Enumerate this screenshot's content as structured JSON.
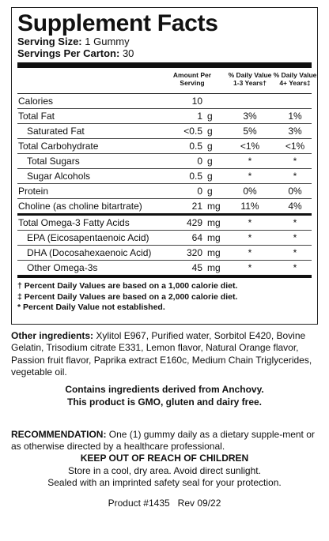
{
  "panel": {
    "title": "Supplement Facts",
    "serving_size_label": "Serving Size:",
    "serving_size_value": "1 Gummy",
    "servings_label": "Servings Per Carton:",
    "servings_value": "30",
    "col_amount": [
      "Amount Per",
      "Serving"
    ],
    "col_dv1": [
      "% Daily Value",
      "1-3 Years†"
    ],
    "col_dv2": [
      "% Daily Value",
      "4+ Years‡"
    ],
    "rows": [
      {
        "label": "Calories",
        "amount": "10",
        "unit": "",
        "dv1": "",
        "dv2": ""
      },
      {
        "label": "Total Fat",
        "amount": "1",
        "unit": "g",
        "dv1": "3%",
        "dv2": "1%"
      },
      {
        "label": "Saturated Fat",
        "amount": "<0.5",
        "unit": "g",
        "dv1": "5%",
        "dv2": "3%"
      },
      {
        "label": "Total Carbohydrate",
        "amount": "0.5",
        "unit": "g",
        "dv1": "<1%",
        "dv2": "<1%"
      },
      {
        "label": "Total Sugars",
        "amount": "0",
        "unit": "g",
        "dv1": "*",
        "dv2": "*"
      },
      {
        "label": "Sugar Alcohols",
        "amount": "0.5",
        "unit": "g",
        "dv1": "*",
        "dv2": "*"
      },
      {
        "label": "Protein",
        "amount": "0",
        "unit": "g",
        "dv1": "0%",
        "dv2": "0%"
      },
      {
        "label": "Choline (as choline bitartrate)",
        "amount": "21",
        "unit": "mg",
        "dv1": "11%",
        "dv2": "4%"
      },
      {
        "label": "Total Omega-3 Fatty Acids",
        "amount": "429",
        "unit": "mg",
        "dv1": "*",
        "dv2": "*"
      },
      {
        "label": "EPA (Eicosapentaenoic Acid)",
        "amount": "64",
        "unit": "mg",
        "dv1": "*",
        "dv2": "*"
      },
      {
        "label": "DHA (Docosahexaenoic Acid)",
        "amount": "320",
        "unit": "mg",
        "dv1": "*",
        "dv2": "*"
      },
      {
        "label": "Other Omega-3s",
        "amount": "45",
        "unit": "mg",
        "dv1": "*",
        "dv2": "*"
      }
    ],
    "footnotes": [
      "† Percent Daily Values are based on a 1,000 calorie diet.",
      "‡ Percent Daily Values are based on a 2,000 calorie diet.",
      "* Percent Daily Value not established."
    ]
  },
  "other_ingredients": {
    "label": "Other ingredients:",
    "text": "Xylitol E967, Purified water, Sorbitol E420, Bovine Gelatin, Trisodium citrate E331, Lemon flavor, Natural Orange flavor, Passion fruit flavor, Paprika extract E160c, Medium Chain Triglycerides, vegetable oil."
  },
  "allergen": [
    "Contains ingredients derived from Anchovy.",
    "This product is GMO, gluten and dairy free."
  ],
  "recommendation": {
    "label": "RECOMMENDATION:",
    "text": "One (1) gummy daily as a dietary supple-ment or as otherwise directed by a healthcare professional."
  },
  "warning": {
    "heading": "KEEP OUT OF REACH OF CHILDREN",
    "lines": [
      "Store in a cool, dry area. Avoid direct sunlight.",
      "Sealed with an imprinted safety seal for your protection."
    ]
  },
  "product_line": "Product #1435   Rev 09/22"
}
